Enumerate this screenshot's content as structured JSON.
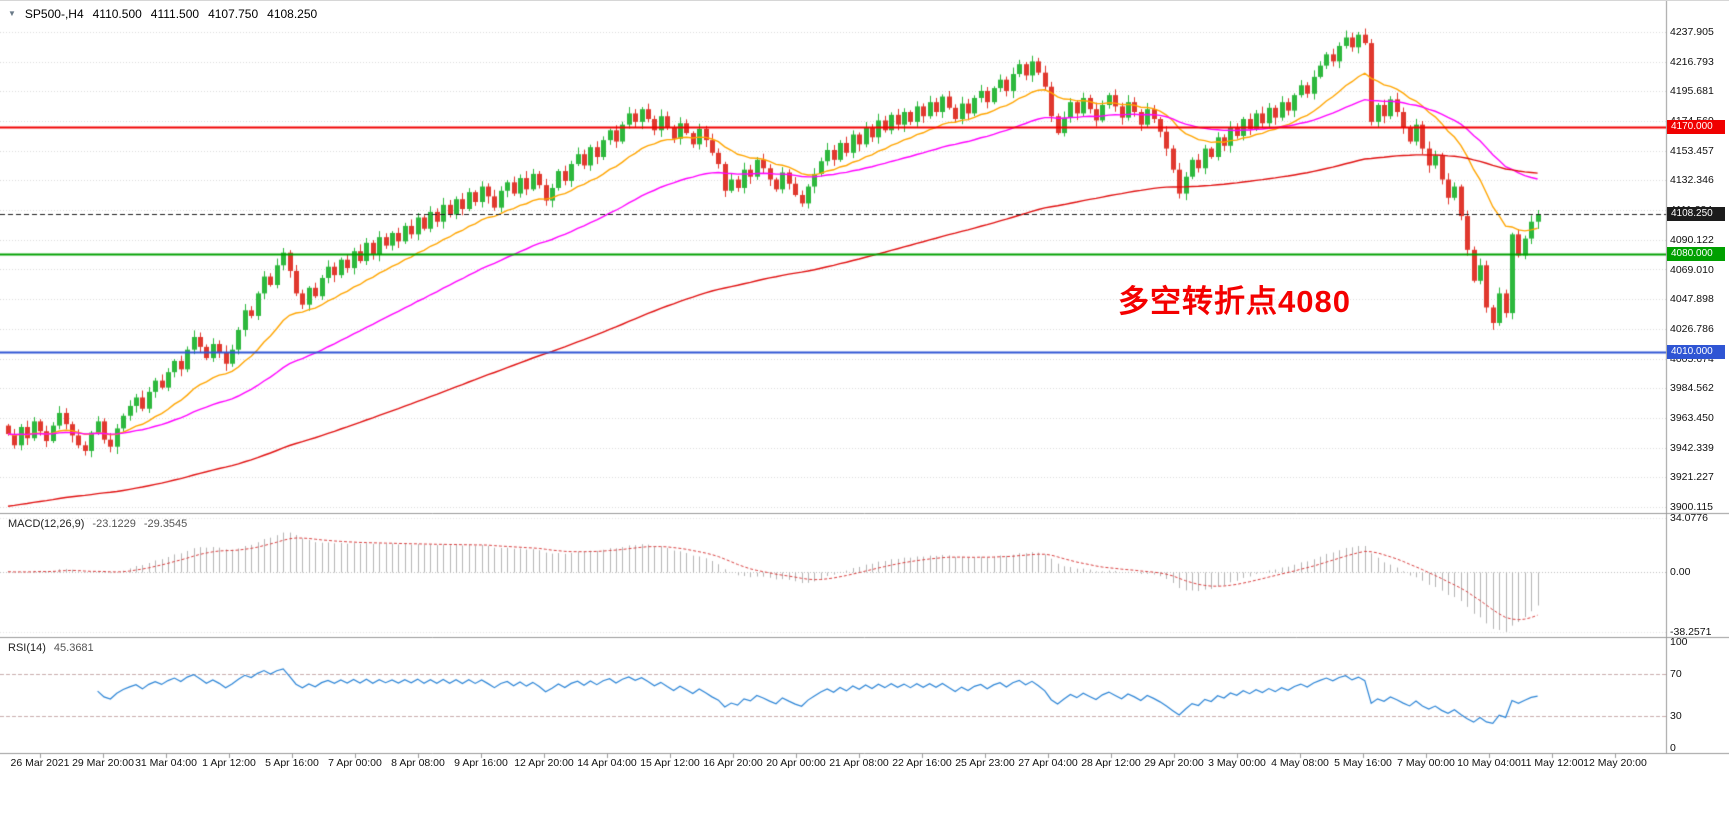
{
  "icons": {
    "symbol_marker": "▼"
  },
  "quote": {
    "symbol_period": "SP500-,H4",
    "open": "4110.500",
    "high": "4111.500",
    "low": "4107.750",
    "close": "4108.250"
  },
  "annotation": {
    "text": "多空转折点4080",
    "color": "#f40000"
  },
  "price_axis": {
    "labels": [
      "4237.905",
      "4216.793",
      "4195.681",
      "4174.569",
      "4153.457",
      "4132.346",
      "4111.234",
      "4090.122",
      "4069.010",
      "4047.898",
      "4026.786",
      "4005.674",
      "3984.562",
      "3963.450",
      "3942.339",
      "3921.227",
      "3900.115"
    ]
  },
  "levels": [
    {
      "label": "4170.000",
      "price": 4170.0,
      "color": "#f00000",
      "style": "solid",
      "width": 2
    },
    {
      "label": "4108.250",
      "price": 4108.25,
      "color": "#1c1c1c",
      "style": "dash",
      "width": 1
    },
    {
      "label": "4080.000",
      "price": 4080.0,
      "color": "#00a000",
      "style": "solid",
      "width": 2
    },
    {
      "label": "4010.000",
      "price": 4010.0,
      "color": "#2f55d4",
      "style": "solid",
      "width": 2
    }
  ],
  "chart_data": {
    "type": "candlestick",
    "symbol": "SP500-",
    "timeframe": "H4",
    "price_range": {
      "top": 4237.905,
      "bottom": 3900.115
    },
    "first_open": 3958,
    "closes": [
      3952,
      3944,
      3957,
      3949,
      3961,
      3954,
      3947,
      3958,
      3967,
      3959,
      3951,
      3944,
      3940,
      3953,
      3961,
      3948,
      3943,
      3956,
      3965,
      3972,
      3978,
      3970,
      3982,
      3990,
      3985,
      3996,
      4004,
      3998,
      4012,
      4021,
      4014,
      4006,
      4016,
      4010,
      4002,
      4012,
      4026,
      4040,
      4036,
      4052,
      4064,
      4058,
      4072,
      4081,
      4068,
      4052,
      4044,
      4056,
      4050,
      4063,
      4071,
      4065,
      4076,
      4070,
      4082,
      4075,
      4088,
      4080,
      4092,
      4086,
      4095,
      4089,
      4100,
      4094,
      4106,
      4098,
      4110,
      4103,
      4115,
      4108,
      4119,
      4112,
      4124,
      4117,
      4128,
      4121,
      4113,
      4125,
      4131,
      4123,
      4134,
      4126,
      4137,
      4129,
      4118,
      4127,
      4139,
      4132,
      4144,
      4151,
      4143,
      4156,
      4149,
      4161,
      4168,
      4160,
      4172,
      4180,
      4174,
      4183,
      4176,
      4168,
      4178,
      4170,
      4162,
      4173,
      4166,
      4158,
      4169,
      4161,
      4152,
      4144,
      4125,
      4133,
      4127,
      4140,
      4135,
      4147,
      4141,
      4133,
      4126,
      4138,
      4130,
      4122,
      4116,
      4128,
      4137,
      4146,
      4154,
      4147,
      4159,
      4152,
      4165,
      4158,
      4170,
      4163,
      4175,
      4168,
      4179,
      4172,
      4181,
      4174,
      4185,
      4178,
      4188,
      4181,
      4192,
      4184,
      4176,
      4187,
      4180,
      4191,
      4196,
      4188,
      4198,
      4204,
      4196,
      4208,
      4215,
      4207,
      4217,
      4209,
      4199,
      4178,
      4166,
      4177,
      4188,
      4180,
      4191,
      4183,
      4175,
      4186,
      4193,
      4185,
      4177,
      4188,
      4181,
      4172,
      4183,
      4176,
      4167,
      4155,
      4140,
      4123,
      4135,
      4147,
      4141,
      4155,
      4149,
      4163,
      4157,
      4170,
      4164,
      4176,
      4169,
      4180,
      4173,
      4184,
      4177,
      4188,
      4182,
      4193,
      4200,
      4194,
      4206,
      4214,
      4222,
      4217,
      4228,
      4234,
      4227,
      4236,
      4230,
      4174,
      4186,
      4178,
      4190,
      4181,
      4170,
      4160,
      4172,
      4155,
      4143,
      4150,
      4133,
      4120,
      4128,
      4107,
      4083,
      4061,
      4072,
      4042,
      4031,
      4052,
      4038,
      4094,
      4079,
      4091,
      4103,
      4108.25
    ],
    "time_ticks": [
      "26 Mar 2021",
      "29 Mar 20:00",
      "31 Mar 04:00",
      "1 Apr 12:00",
      "5 Apr 16:00",
      "7 Apr 00:00",
      "8 Apr 08:00",
      "9 Apr 16:00",
      "12 Apr 20:00",
      "14 Apr 04:00",
      "15 Apr 12:00",
      "16 Apr 20:00",
      "20 Apr 00:00",
      "21 Apr 08:00",
      "22 Apr 16:00",
      "25 Apr 23:00",
      "27 Apr 04:00",
      "28 Apr 12:00",
      "29 Apr 20:00",
      "3 May 00:00",
      "4 May 08:00",
      "5 May 16:00",
      "7 May 00:00",
      "10 May 04:00",
      "11 May 12:00",
      "12 May 20:00"
    ],
    "moving_averages": [
      {
        "name": "fast-ema",
        "period": 18,
        "color": "#ffa500"
      },
      {
        "name": "medium-ema",
        "period": 48,
        "color": "#ff00ff"
      },
      {
        "name": "slow-ema",
        "period": 150,
        "color": "#e01010",
        "seed": 3900
      }
    ],
    "candle_colors": {
      "up": "#2db83d",
      "down": "#e0382e"
    }
  },
  "macd": {
    "name": "MACD(12,26,9)",
    "value": "-23.1229",
    "signal": "-29.3545",
    "fast": 12,
    "slow": 26,
    "signal_period": 9,
    "axis_labels": [
      "34.0776",
      "0.00",
      "-38.2571"
    ],
    "axis_values": [
      34.0776,
      0,
      -38.2571
    ],
    "histogram_color": "#b4b4b4",
    "signal_color": "#d84040"
  },
  "rsi": {
    "name": "RSI(14)",
    "value": "45.3681",
    "period": 14,
    "axis_labels": [
      "100",
      "70",
      "30",
      "0"
    ],
    "axis_values": [
      100,
      70,
      30,
      0
    ],
    "levels": [
      70,
      30
    ],
    "line_color": "#2b84d6"
  },
  "colors": {
    "background": "#ffffff",
    "grid": "#d9d9d9",
    "separator": "#9a9a9a",
    "text": "#111111"
  }
}
